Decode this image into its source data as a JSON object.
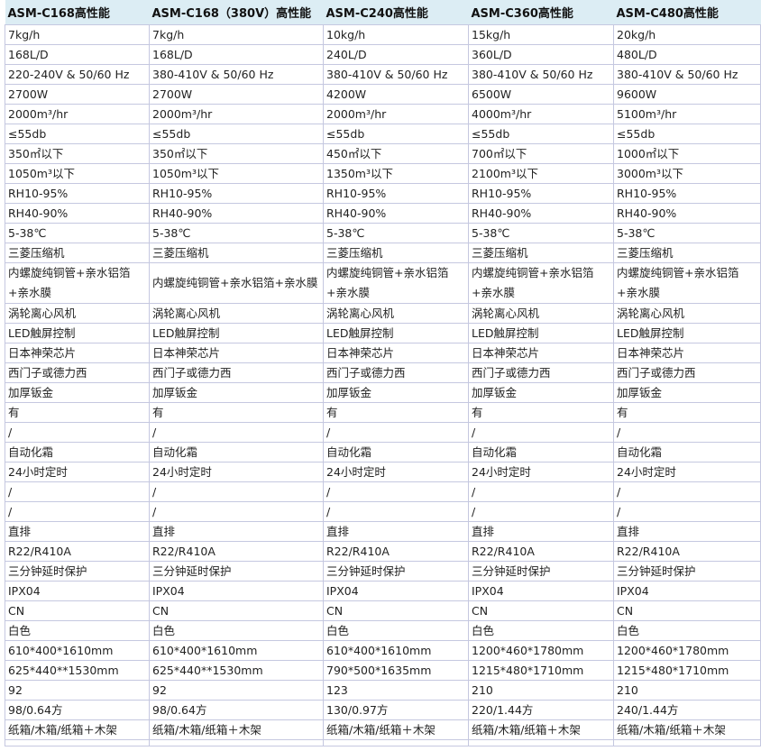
{
  "table": {
    "headers": [
      "ASM-C168高性能",
      "ASM-C168（380V）高性能",
      "ASM-C240高性能",
      "ASM-C360高性能",
      "ASM-C480高性能"
    ],
    "rows": [
      [
        "7kg/h",
        "7kg/h",
        "10kg/h",
        "15kg/h",
        "20kg/h"
      ],
      [
        "168L/D",
        "168L/D",
        "240L/D",
        "360L/D",
        "480L/D"
      ],
      [
        "220-240V & 50/60 Hz",
        "380-410V & 50/60 Hz",
        "380-410V & 50/60 Hz",
        "380-410V & 50/60 Hz",
        "380-410V & 50/60 Hz"
      ],
      [
        "2700W",
        "2700W",
        "4200W",
        "6500W",
        "9600W"
      ],
      [
        "2000m³/hr",
        "2000m³/hr",
        "2000m³/hr",
        "4000m³/hr",
        "5100m³/hr"
      ],
      [
        "≤55db",
        "≤55db",
        "≤55db",
        "≤55db",
        "≤55db"
      ],
      [
        "350㎡以下",
        "350㎡以下",
        "450㎡以下",
        "700㎡以下",
        "1000㎡以下"
      ],
      [
        "1050m³以下",
        "1050m³以下",
        "1350m³以下",
        "2100m³以下",
        "3000m³以下"
      ],
      [
        "RH10-95%",
        "RH10-95%",
        "RH10-95%",
        "RH10-95%",
        "RH10-95%"
      ],
      [
        "RH40-90%",
        "RH40-90%",
        "RH40-90%",
        "RH40-90%",
        "RH40-90%"
      ],
      [
        "5-38℃",
        "5-38℃",
        "5-38℃",
        "5-38℃",
        "5-38℃"
      ],
      [
        "三菱压缩机",
        "三菱压缩机",
        "三菱压缩机",
        "三菱压缩机",
        "三菱压缩机"
      ],
      [
        "内螺旋纯铜管+亲水铝箔+亲水膜",
        "内螺旋纯铜管+亲水铝箔+亲水膜",
        "内螺旋纯铜管+亲水铝箔+亲水膜",
        "内螺旋纯铜管+亲水铝箔+亲水膜",
        "内螺旋纯铜管+亲水铝箔+亲水膜"
      ],
      [
        "涡轮离心风机",
        "涡轮离心风机",
        "涡轮离心风机",
        "涡轮离心风机",
        "涡轮离心风机"
      ],
      [
        "LED触屏控制",
        "LED触屏控制",
        "LED触屏控制",
        "LED触屏控制",
        "LED触屏控制"
      ],
      [
        "日本神荣芯片",
        "日本神荣芯片",
        "日本神荣芯片",
        "日本神荣芯片",
        "日本神荣芯片"
      ],
      [
        "西门子或德力西",
        "西门子或德力西",
        "西门子或德力西",
        "西门子或德力西",
        "西门子或德力西"
      ],
      [
        "加厚钣金",
        "加厚钣金",
        "加厚钣金",
        "加厚钣金",
        "加厚钣金"
      ],
      [
        "有",
        "有",
        "有",
        "有",
        "有"
      ],
      [
        "/",
        "/",
        "/",
        "/",
        "/"
      ],
      [
        "自动化霜",
        "自动化霜",
        "自动化霜",
        "自动化霜",
        "自动化霜"
      ],
      [
        "24小时定时",
        "24小时定时",
        "24小时定时",
        "24小时定时",
        "24小时定时"
      ],
      [
        "/",
        "/",
        "/",
        "/",
        "/"
      ],
      [
        "/",
        "/",
        "/",
        "/",
        "/"
      ],
      [
        "直排",
        "直排",
        "直排",
        "直排",
        "直排"
      ],
      [
        "R22/R410A",
        "R22/R410A",
        "R22/R410A",
        "R22/R410A",
        "R22/R410A"
      ],
      [
        "三分钟延时保护",
        "三分钟延时保护",
        "三分钟延时保护",
        "三分钟延时保护",
        "三分钟延时保护"
      ],
      [
        "IPX04",
        "IPX04",
        "IPX04",
        "IPX04",
        "IPX04"
      ],
      [
        "CN",
        "CN",
        "CN",
        "CN",
        "CN"
      ],
      [
        "白色",
        "白色",
        "白色",
        "白色",
        "白色"
      ],
      [
        "610*400*1610mm",
        "610*400*1610mm",
        "610*400*1610mm",
        "1200*460*1780mm",
        "1200*460*1780mm"
      ],
      [
        "625*440**1530mm",
        "625*440**1530mm",
        "790*500*1635mm",
        "1215*480*1710mm",
        "1215*480*1710mm"
      ],
      [
        "92",
        "92",
        "123",
        "210",
        "210"
      ],
      [
        "98/0.64方",
        "98/0.64方",
        "130/0.97方",
        "220/1.44方",
        "240/1.44方"
      ],
      [
        "纸箱/木箱/纸箱＋木架",
        "纸箱/木箱/纸箱＋木架",
        "纸箱/木箱/纸箱＋木架",
        "纸箱/木箱/纸箱＋木架",
        "纸箱/木箱/纸箱＋木架"
      ],
      [
        "",
        "",
        "",
        "",
        ""
      ]
    ]
  }
}
